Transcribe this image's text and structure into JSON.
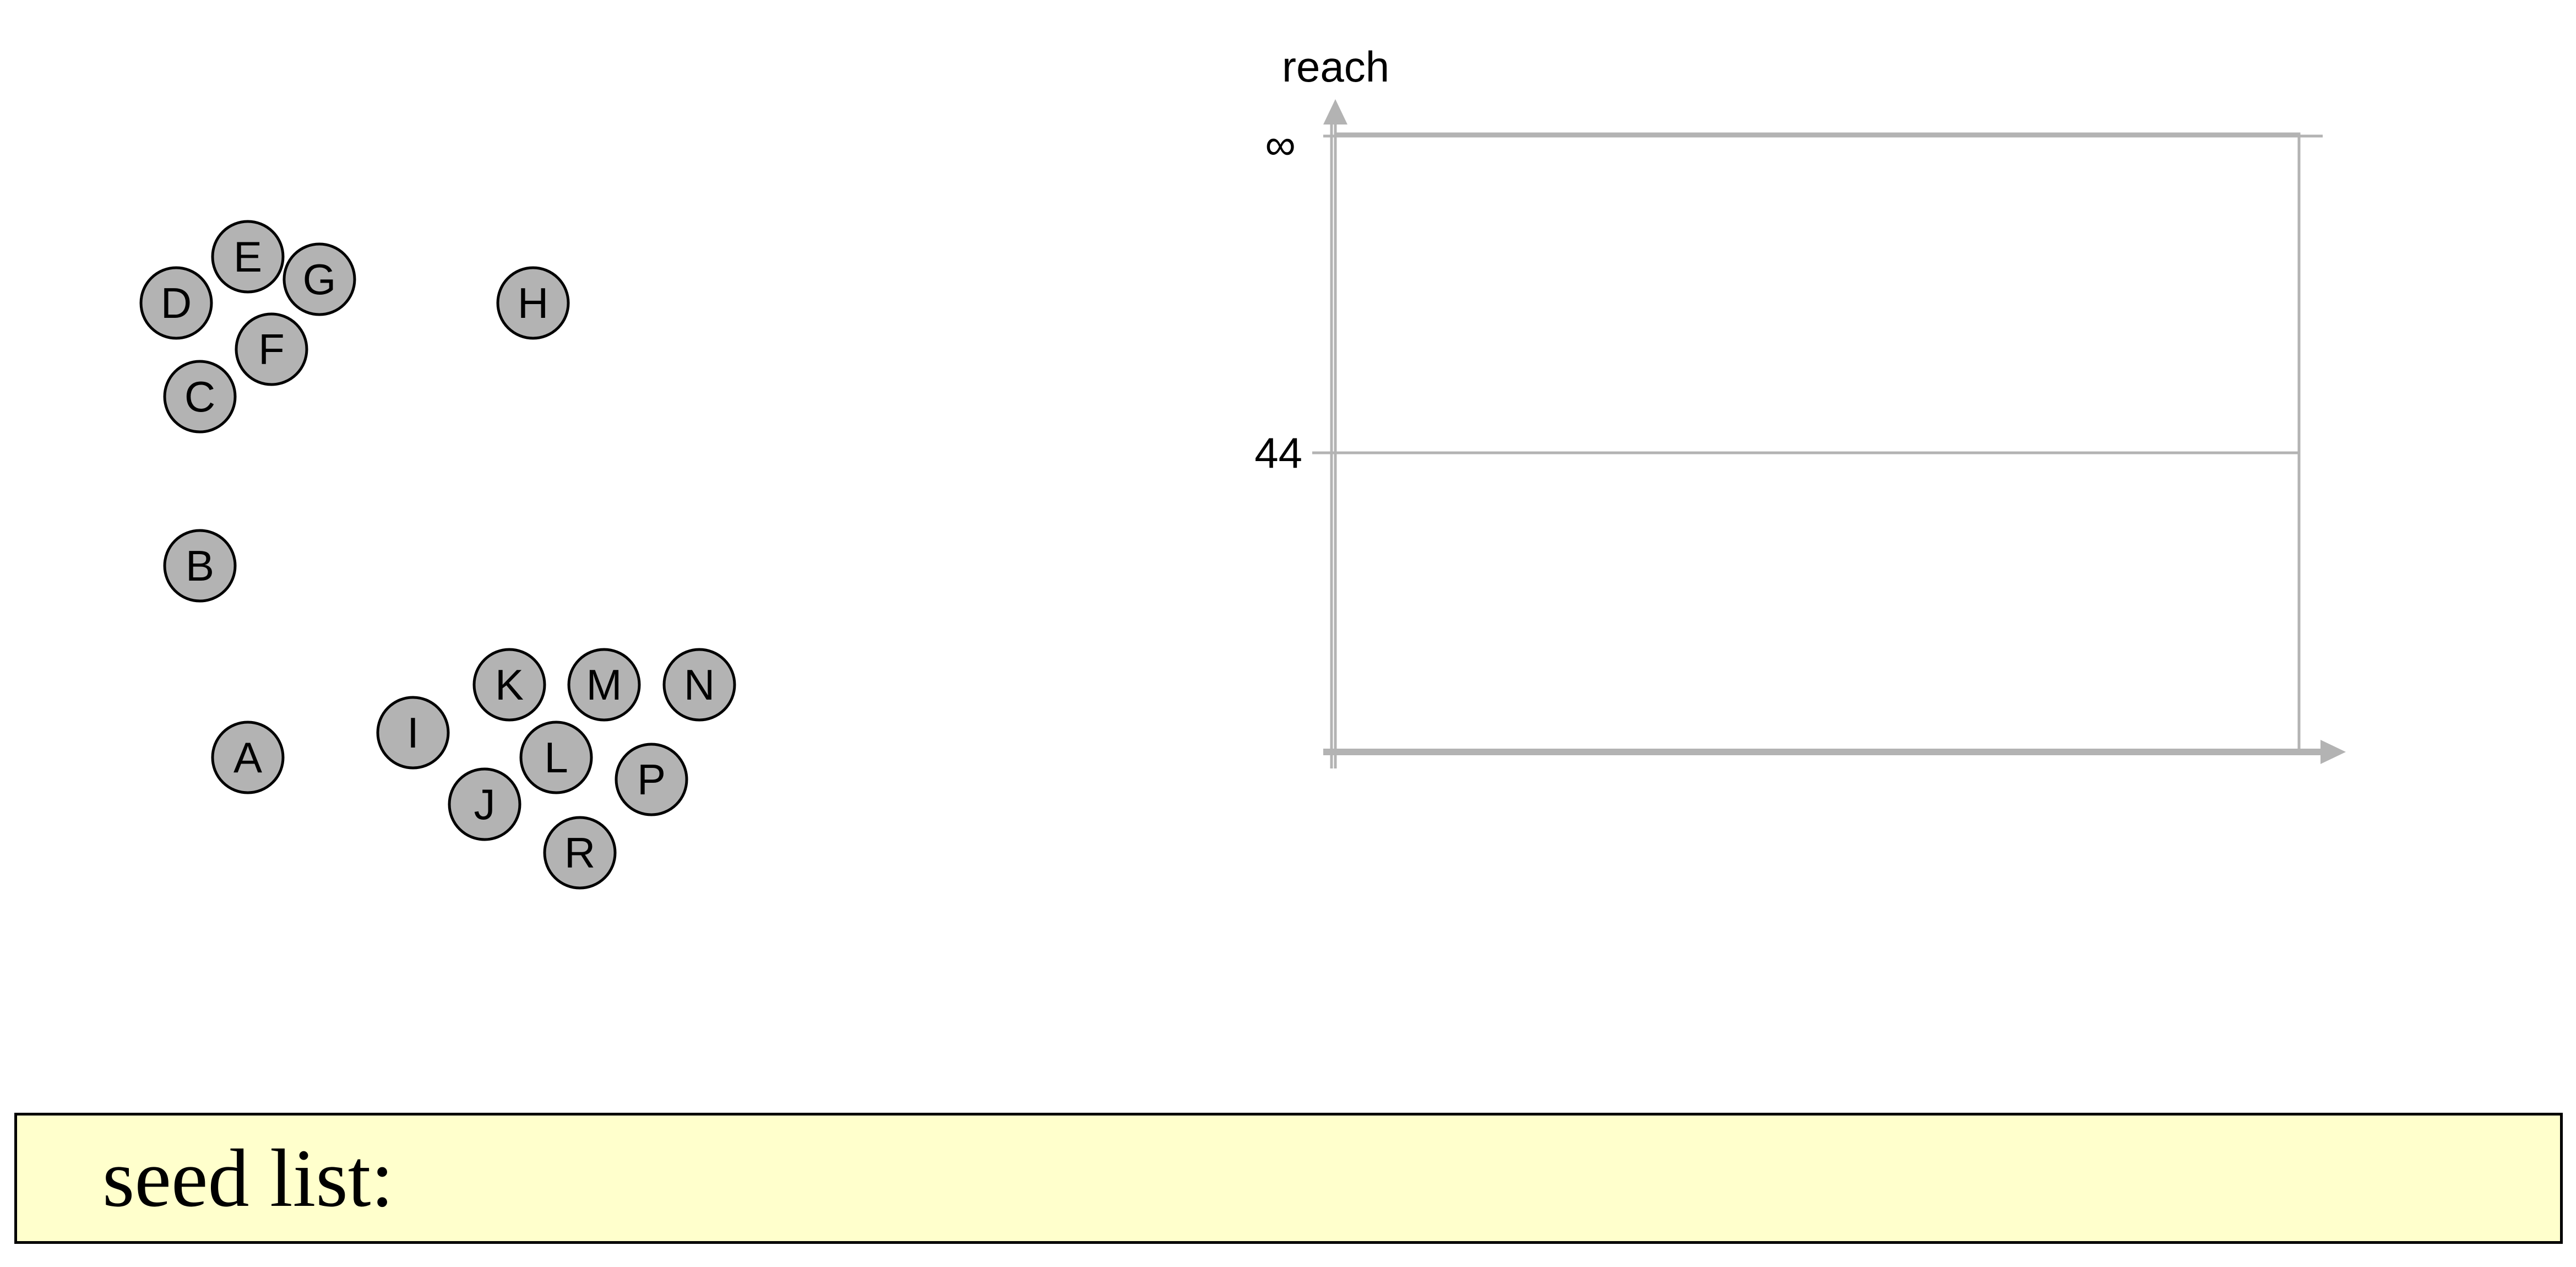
{
  "colors": {
    "node_fill": "#b3b3b3",
    "node_stroke": "#000000",
    "axis": "#b3b3b3",
    "panel_background": "#ffffcc"
  },
  "points": [
    {
      "label": "A"
    },
    {
      "label": "B"
    },
    {
      "label": "C"
    },
    {
      "label": "D"
    },
    {
      "label": "E"
    },
    {
      "label": "F"
    },
    {
      "label": "G"
    },
    {
      "label": "H"
    },
    {
      "label": "I"
    },
    {
      "label": "J"
    },
    {
      "label": "K"
    },
    {
      "label": "L"
    },
    {
      "label": "M"
    },
    {
      "label": "N"
    },
    {
      "label": "P"
    },
    {
      "label": "R"
    }
  ],
  "plot": {
    "y_label": "reach",
    "y_ticks": [
      "∞",
      "44"
    ]
  },
  "seed_list": {
    "label": "seed list:"
  }
}
